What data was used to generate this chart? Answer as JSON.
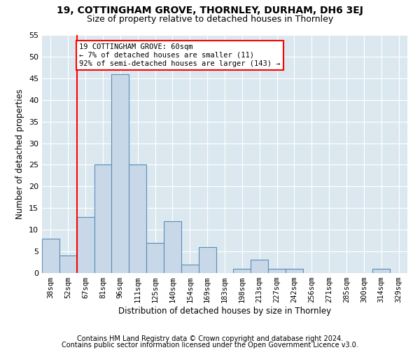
{
  "title1": "19, COTTINGHAM GROVE, THORNLEY, DURHAM, DH6 3EJ",
  "title2": "Size of property relative to detached houses in Thornley",
  "xlabel": "Distribution of detached houses by size in Thornley",
  "ylabel": "Number of detached properties",
  "footnote1": "Contains HM Land Registry data © Crown copyright and database right 2024.",
  "footnote2": "Contains public sector information licensed under the Open Government Licence v3.0.",
  "categories": [
    "38sqm",
    "52sqm",
    "67sqm",
    "81sqm",
    "96sqm",
    "111sqm",
    "125sqm",
    "140sqm",
    "154sqm",
    "169sqm",
    "183sqm",
    "198sqm",
    "213sqm",
    "227sqm",
    "242sqm",
    "256sqm",
    "271sqm",
    "285sqm",
    "300sqm",
    "314sqm",
    "329sqm"
  ],
  "values": [
    8,
    4,
    13,
    25,
    46,
    25,
    7,
    12,
    2,
    6,
    0,
    1,
    3,
    1,
    1,
    0,
    0,
    0,
    0,
    1,
    0
  ],
  "bar_color": "#c8d8e8",
  "bar_edge_color": "#5a8db5",
  "bar_edge_width": 0.8,
  "annotation_text": "19 COTTINGHAM GROVE: 60sqm\n← 7% of detached houses are smaller (11)\n92% of semi-detached houses are larger (143) →",
  "annotation_box_color": "white",
  "annotation_box_edge_color": "red",
  "vline_color": "red",
  "vline_x_index": 1.5,
  "ylim": [
    0,
    55
  ],
  "yticks": [
    0,
    5,
    10,
    15,
    20,
    25,
    30,
    35,
    40,
    45,
    50,
    55
  ],
  "background_color": "#dce8f0",
  "grid_color": "white",
  "title1_fontsize": 10,
  "title2_fontsize": 9,
  "xlabel_fontsize": 8.5,
  "ylabel_fontsize": 8.5,
  "footnote_fontsize": 7
}
